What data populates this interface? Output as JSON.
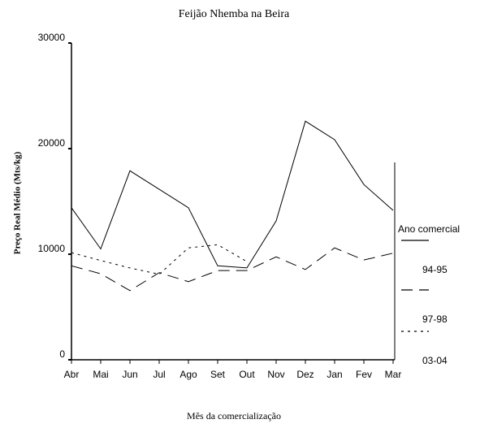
{
  "chart_data": {
    "type": "line",
    "title": "Feijão Nhemba na Beira",
    "x_label": "Mês da comercialização",
    "y_label": "Preço Real Médio (Mts/kg)",
    "categories": [
      "Abr",
      "Mai",
      "Jun",
      "Jul",
      "Ago",
      "Set",
      "Out",
      "Nov",
      "Dez",
      "Jan",
      "Fev",
      "Mar"
    ],
    "series": [
      {
        "name": "94-95",
        "color": "#000000",
        "style": "solid",
        "values": [
          14400,
          10500,
          17900,
          16150,
          14400,
          8900,
          8700,
          13150,
          22600,
          20850,
          16600,
          14150
        ]
      },
      {
        "name": "97-98",
        "color": "#000000",
        "style": "dashed",
        "values": [
          8900,
          8150,
          6550,
          8250,
          7400,
          8450,
          8450,
          9750,
          8550,
          10600,
          9450,
          10100
        ]
      },
      {
        "name": "03-04",
        "color": "#000000",
        "style": "dotted",
        "values": [
          10150,
          9400,
          8700,
          8100,
          10600,
          10900,
          9300,
          null,
          null,
          null,
          null,
          null
        ]
      }
    ],
    "legend_title": "Ano comercial",
    "legend": "right",
    "ylim": [
      0,
      30000
    ],
    "yticks": [
      0,
      10000,
      20000,
      30000
    ]
  }
}
